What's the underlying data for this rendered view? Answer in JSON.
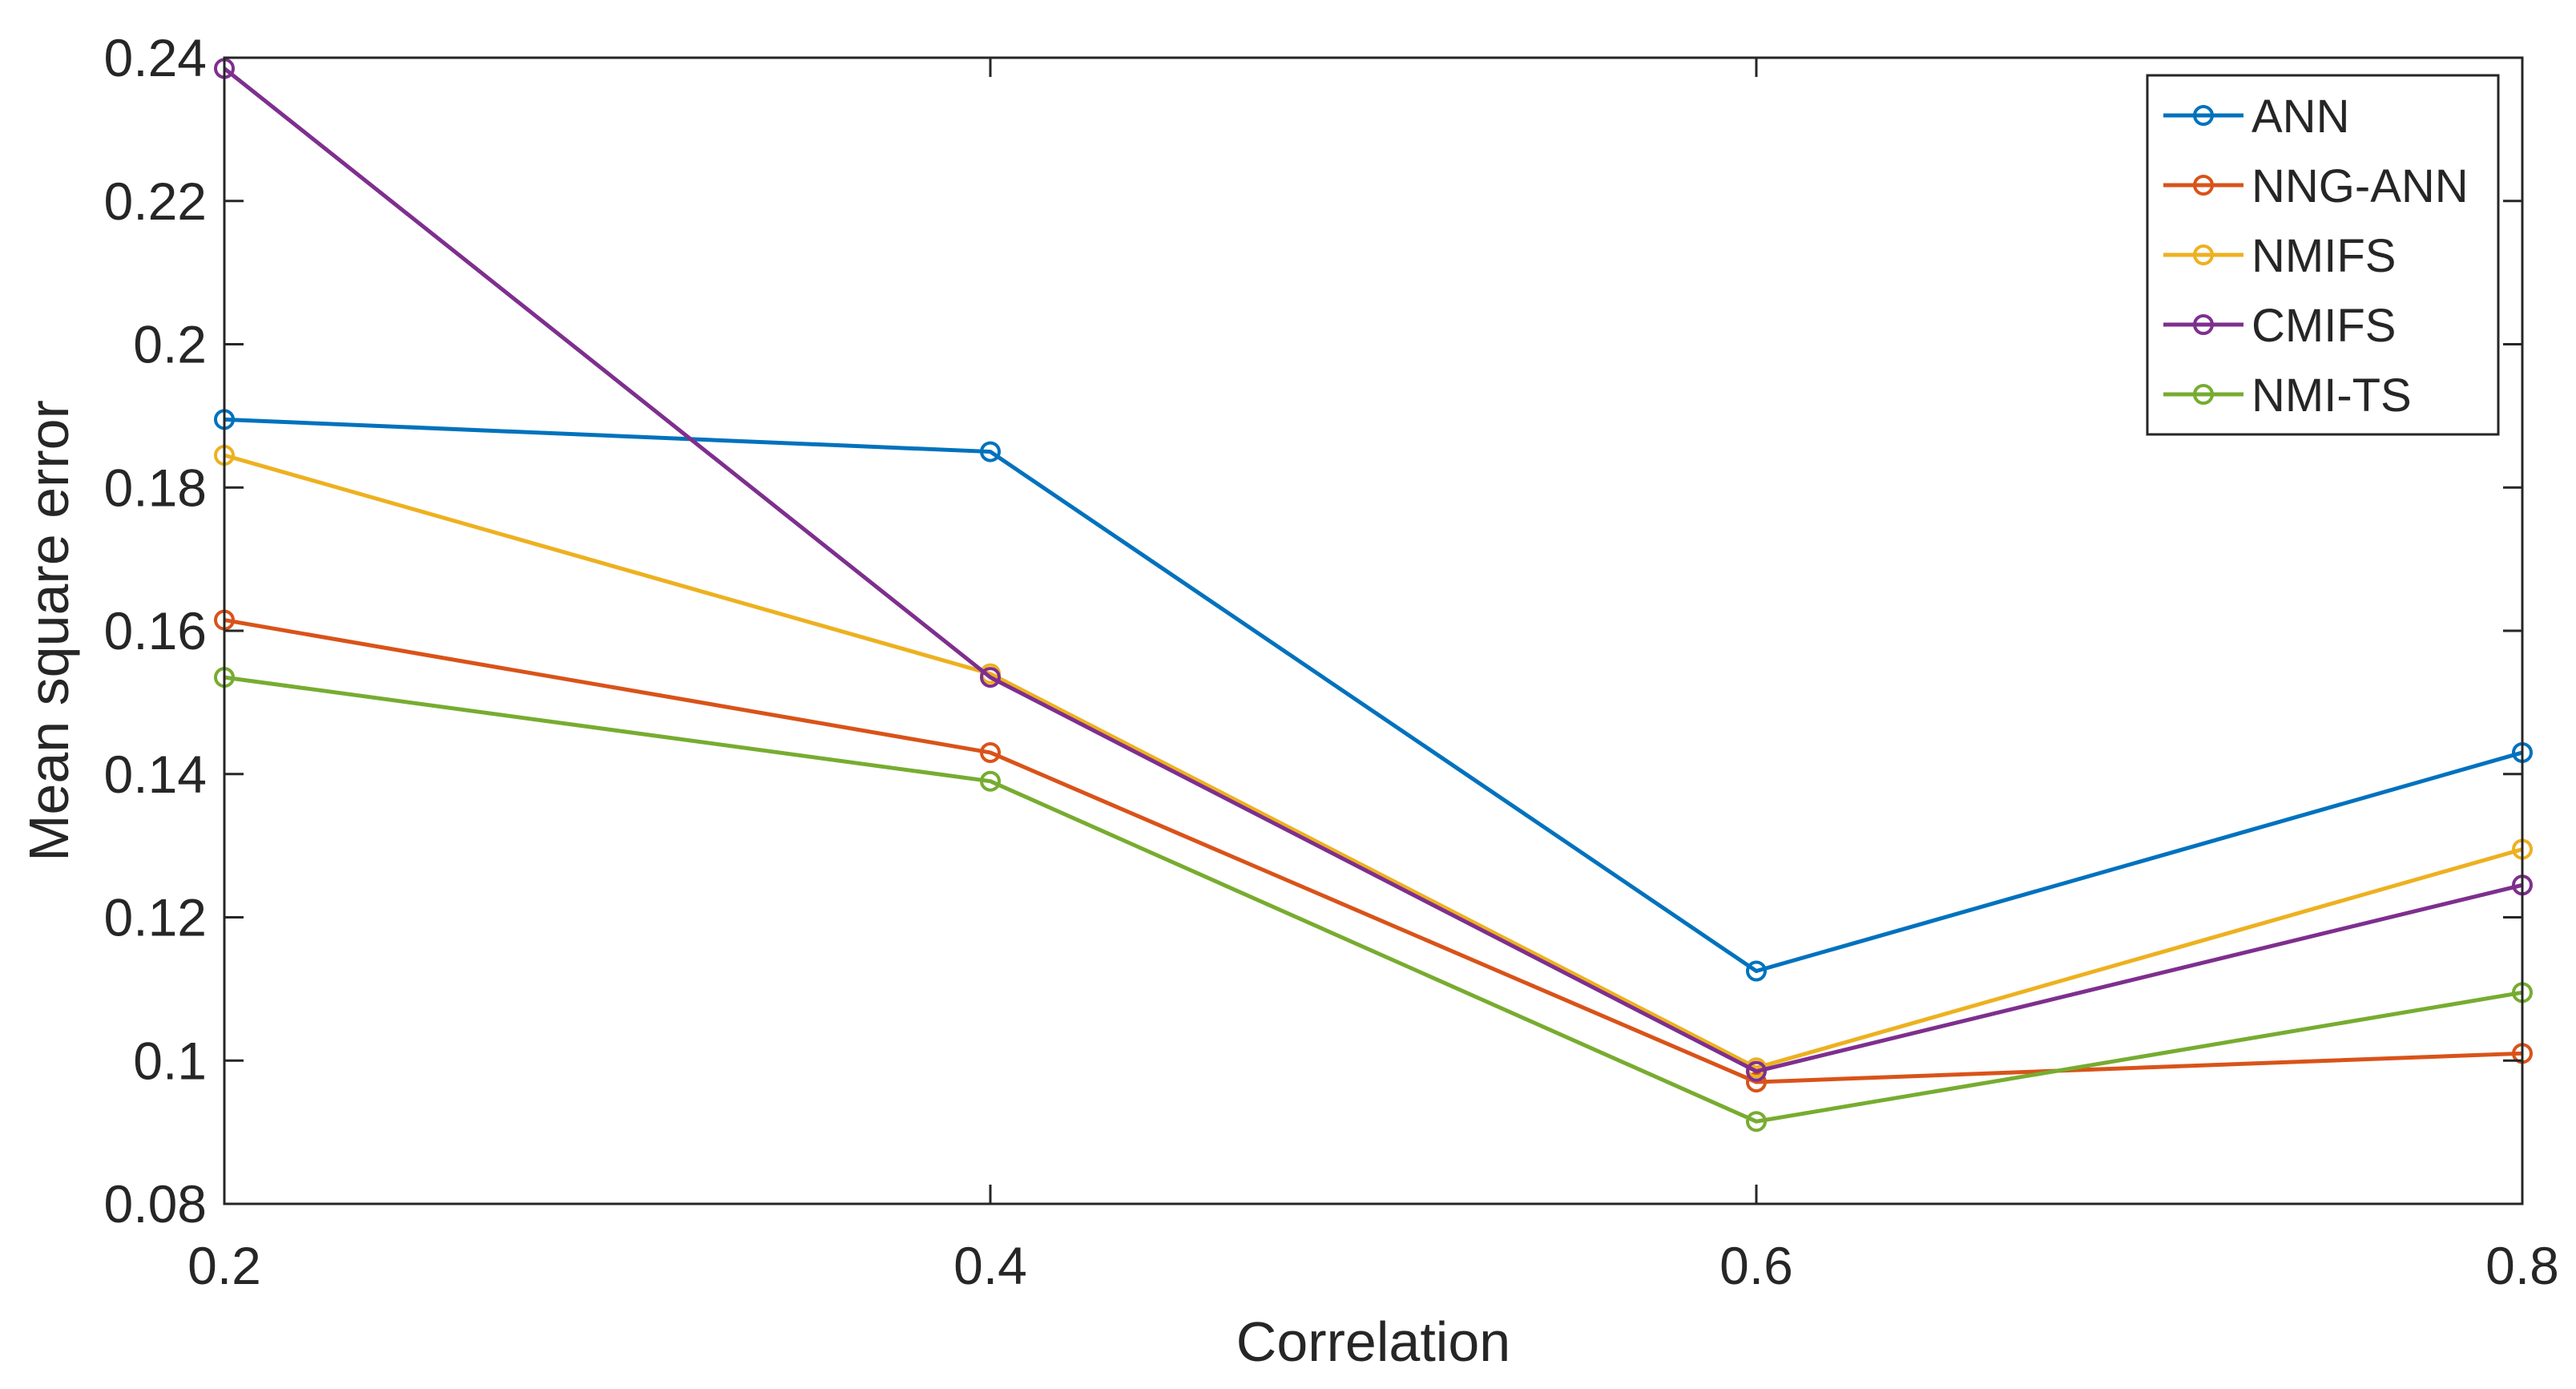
{
  "chart_data": {
    "type": "line",
    "title": "",
    "xlabel": "Correlation",
    "ylabel": "Mean square error",
    "x": [
      0.2,
      0.4,
      0.6,
      0.8
    ],
    "xlim": [
      0.2,
      0.8
    ],
    "ylim": [
      0.08,
      0.24
    ],
    "xticks": [
      0.2,
      0.4,
      0.6,
      0.8
    ],
    "xtick_labels": [
      "0.2",
      "0.4",
      "0.6",
      "0.8"
    ],
    "yticks": [
      0.08,
      0.1,
      0.12,
      0.14,
      0.16,
      0.18,
      0.2,
      0.22,
      0.24
    ],
    "ytick_labels": [
      "0.08",
      "0.1",
      "0.12",
      "0.14",
      "0.16",
      "0.18",
      "0.2",
      "0.22",
      "0.24"
    ],
    "grid": false,
    "legend_position": "top-right",
    "marker": "circle",
    "series": [
      {
        "name": "ANN",
        "color": "#0072BD",
        "values": [
          0.1895,
          0.185,
          0.1125,
          0.143
        ]
      },
      {
        "name": "NNG-ANN",
        "color": "#D95319",
        "values": [
          0.1615,
          0.143,
          0.097,
          0.101
        ]
      },
      {
        "name": "NMIFS",
        "color": "#EDB120",
        "values": [
          0.1845,
          0.154,
          0.099,
          0.1295
        ]
      },
      {
        "name": "CMIFS",
        "color": "#7E2F8E",
        "values": [
          0.2385,
          0.1535,
          0.0985,
          0.1245
        ]
      },
      {
        "name": "NMI-TS",
        "color": "#77AC30",
        "values": [
          0.1535,
          0.139,
          0.0915,
          0.1095
        ]
      }
    ]
  }
}
